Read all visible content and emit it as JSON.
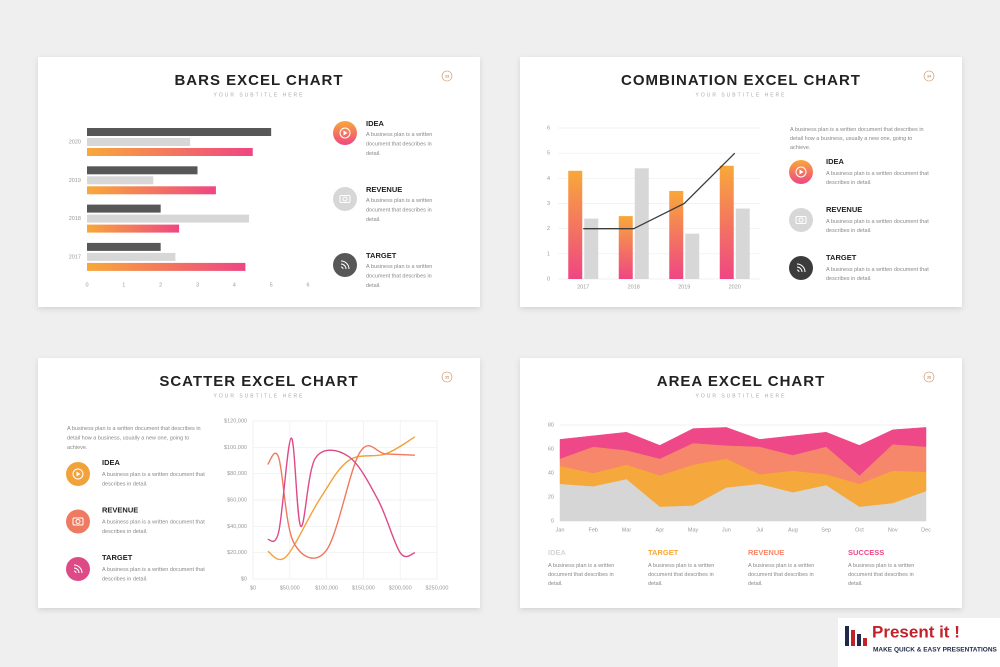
{
  "chart_data": [
    {
      "type": "hbar",
      "title": "BARS EXCEL CHART",
      "subtitle": "YOUR SUBTITLE HERE",
      "slide_number": 33,
      "categories": [
        "2020",
        "2019",
        "2018",
        "2017"
      ],
      "series": [
        {
          "name": "IDEA",
          "gradient": [
            "#f8a83a",
            "#ef4683"
          ],
          "values": [
            4.5,
            3.5,
            2.5,
            4.3
          ],
          "description": "A business plan is a written document that describes in detail."
        },
        {
          "name": "REVENUE",
          "color": "#d7d7d7",
          "values": [
            2.8,
            1.8,
            4.4,
            2.4
          ],
          "description": "A business plan is a written document that describes in detail."
        },
        {
          "name": "TARGET",
          "color": "#575757",
          "values": [
            5,
            3,
            2,
            2
          ],
          "description": "A business plan is a written document that describes in detail."
        }
      ],
      "xlim": [
        0,
        6
      ],
      "xticks": [
        0,
        1,
        2,
        3,
        4,
        5,
        6
      ],
      "grid": false
    },
    {
      "type": "combo",
      "title": "COMBINATION EXCEL CHART",
      "subtitle": "YOUR SUBTITLE HERE",
      "slide_number": 34,
      "description": "A business plan is a written document that describes in detail how a business, usually a new one, going to achieve.",
      "categories": [
        "2017",
        "2018",
        "2019",
        "2020"
      ],
      "series": [
        {
          "name": "IDEA",
          "type": "bar",
          "gradient": [
            "#f8a83a",
            "#ef4683"
          ],
          "values": [
            4.3,
            2.5,
            3.5,
            4.5
          ],
          "description": "A business plan is a written document that describes in detail."
        },
        {
          "name": "REVENUE",
          "type": "bar",
          "color": "#d7d7d7",
          "values": [
            2.4,
            4.4,
            1.8,
            2.8
          ],
          "description": "A business plan is a written document that describes in detail."
        },
        {
          "name": "TARGET",
          "type": "line",
          "color": "#3c3c3c",
          "values": [
            2,
            2,
            3,
            5
          ],
          "description": "A business plan is a written document that describes in detail."
        }
      ],
      "ylim": [
        0,
        6
      ],
      "yticks": [
        0,
        1,
        2,
        3,
        4,
        5,
        6
      ],
      "grid": true
    },
    {
      "type": "scatter",
      "title": "SCATTER EXCEL CHART",
      "subtitle": "YOUR SUBTITLE HERE",
      "slide_number": 35,
      "smooth": true,
      "description": "A business plan is a written document that describes in detail how a business, usually a new one, going to achieve.",
      "series": [
        {
          "name": "IDEA",
          "color": "#f2a23a",
          "x": [
            20000,
            45000,
            90000,
            130000,
            180000,
            220000
          ],
          "values": [
            21000,
            17000,
            60000,
            90000,
            95000,
            108000
          ],
          "description": "A business plan is a written document that describes in detail."
        },
        {
          "name": "REVENUE",
          "color": "#ee7a60",
          "x": [
            20000,
            35000,
            55000,
            100000,
            145000,
            180000,
            220000
          ],
          "values": [
            87000,
            92000,
            28000,
            22000,
            96000,
            95000,
            94000
          ],
          "description": "A business plan is a written document that describes in detail."
        },
        {
          "name": "TARGET",
          "color": "#de4a86",
          "x": [
            20000,
            35000,
            52000,
            65000,
            85000,
            130000,
            170000,
            200000,
            220000
          ],
          "values": [
            30000,
            36000,
            107000,
            40000,
            92000,
            93000,
            60000,
            20000,
            20000
          ],
          "description": "A business plan is a written document that describes in detail."
        }
      ],
      "xlim": [
        0,
        250000
      ],
      "xticks": [
        {
          "value": 0,
          "label": "$0"
        },
        {
          "value": 50000,
          "label": "$50,000"
        },
        {
          "value": 100000,
          "label": "$100,000"
        },
        {
          "value": 150000,
          "label": "$150,000"
        },
        {
          "value": 200000,
          "label": "$200,000"
        },
        {
          "value": 250000,
          "label": "$250,000"
        }
      ],
      "ylim": [
        0,
        120000
      ],
      "yticks": [
        {
          "value": 0,
          "label": "$0"
        },
        {
          "value": 20000,
          "label": "$20,000"
        },
        {
          "value": 40000,
          "label": "$40,000"
        },
        {
          "value": 60000,
          "label": "$60,000"
        },
        {
          "value": 80000,
          "label": "$80,000"
        },
        {
          "value": 100000,
          "label": "$100,000"
        },
        {
          "value": 120000,
          "label": "$120,000"
        }
      ],
      "grid": true
    },
    {
      "type": "area",
      "title": "AREA EXCEL CHART",
      "subtitle": "YOUR SUBTITLE HERE",
      "slide_number": 36,
      "stacked": true,
      "categories": [
        "Jan",
        "Feb",
        "Mar",
        "Apr",
        "May",
        "Jun",
        "Jul",
        "Aug",
        "Sep",
        "Oct",
        "Nov",
        "Dec"
      ],
      "series": [
        {
          "name": "IDEA",
          "color": "#d6d6d6",
          "values": [
            31,
            29,
            35,
            12,
            13,
            28,
            31,
            24,
            30,
            12,
            15,
            25
          ],
          "description": "A business plan is a written document that describes in detail."
        },
        {
          "name": "TARGET",
          "color": "#f5a83b",
          "values": [
            15,
            11,
            12,
            26,
            34,
            24,
            8,
            18,
            9,
            19,
            27,
            16
          ],
          "description": "A business plan is a written document that describes in detail."
        },
        {
          "name": "REVENUE",
          "color": "#f6876a",
          "values": [
            6,
            22,
            12,
            14,
            18,
            11,
            23,
            13,
            23,
            7,
            22,
            21
          ],
          "description": "A business plan is a written document that describes in detail."
        },
        {
          "name": "SUCCESS",
          "color": "#ef4888",
          "values": [
            16,
            9,
            15,
            11,
            12,
            15,
            6,
            16,
            12,
            25,
            12,
            16
          ],
          "description": "A business plan is a written document that describes in detail."
        }
      ],
      "ylim": [
        0,
        80
      ],
      "yticks": [
        0,
        20,
        40,
        60,
        80
      ],
      "grid": true
    }
  ],
  "brand": {
    "name": "Present it !",
    "tagline": "MAKE QUICK & EASY PRESENTATIONS"
  }
}
